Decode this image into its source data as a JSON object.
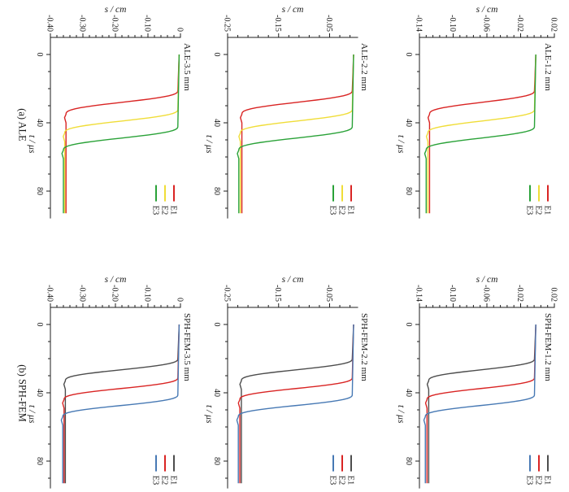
{
  "figure": {
    "background": "#ffffff",
    "row_a_label": "(a) ALE",
    "row_b_label": "(b) SPH-FEM",
    "text_color": "#1c1c1c"
  },
  "chart_data": {
    "type": "line",
    "orientation": "figure rotated 90 degrees clockwise; time axis runs downward, displacement axis runs across the top",
    "s_axis": {
      "label": "s / cm",
      "position": "top"
    },
    "t_axis": {
      "label": "t / μs",
      "position": "left",
      "ticks": [
        0,
        40,
        80
      ],
      "tick_labels": [
        "0",
        "40",
        "80"
      ],
      "minor_step": 10,
      "range": [
        -10,
        96
      ]
    },
    "legend": {
      "entries": [
        "E1",
        "E2",
        "E3"
      ],
      "position": "bottom-right of each subplot"
    },
    "curve_model": "each curve holds s near 0 until t_depart, falls smoothly to plateau_s at t_plateau with a slight overshoot, then stays constant until t = 93 μs",
    "subplots": [
      {
        "title": "ALE-3.5 mm",
        "row": 0,
        "col": 0,
        "s_range": [
          -0.4,
          0.0
        ],
        "s_initial": -0.004,
        "s_major_ticks": [
          -0.4,
          -0.3,
          -0.2,
          -0.1,
          0.0
        ],
        "s_tick_labels": [
          "-0.40",
          "-0.30",
          "-0.20",
          "-0.10",
          "0"
        ],
        "s_minor_step": 0.02,
        "series": [
          {
            "name": "E1",
            "color": "#d92423",
            "t_depart": 21,
            "t_plateau": 35,
            "plateau_s": -0.352
          },
          {
            "name": "E2",
            "color": "#f0dd38",
            "t_depart": 32,
            "t_plateau": 46,
            "plateau_s": -0.356
          },
          {
            "name": "E3",
            "color": "#2aa238",
            "t_depart": 42,
            "t_plateau": 56,
            "plateau_s": -0.36
          }
        ]
      },
      {
        "title": "ALE-2.2 mm",
        "row": 0,
        "col": 1,
        "s_range": [
          -0.25,
          0.005
        ],
        "s_initial": -0.003,
        "s_major_ticks": [
          -0.25,
          -0.15,
          -0.05
        ],
        "s_tick_labels": [
          "-0.25",
          "-0.15",
          "-0.05"
        ],
        "s_minor_step": 0.02,
        "series": [
          {
            "name": "E1",
            "color": "#d92423",
            "t_depart": 21,
            "t_plateau": 35,
            "plateau_s": -0.222
          },
          {
            "name": "E2",
            "color": "#f0dd38",
            "t_depart": 32,
            "t_plateau": 46,
            "plateau_s": -0.225
          },
          {
            "name": "E3",
            "color": "#2aa238",
            "t_depart": 42,
            "t_plateau": 56,
            "plateau_s": -0.228
          }
        ]
      },
      {
        "title": "ALE-1.2 mm",
        "row": 0,
        "col": 2,
        "s_range": [
          -0.14,
          0.02
        ],
        "s_initial": -0.002,
        "s_major_ticks": [
          -0.14,
          -0.1,
          -0.06,
          -0.02,
          0.02
        ],
        "s_tick_labels": [
          "-0.14",
          "-0.10",
          "-0.06",
          "-0.02",
          "0.02"
        ],
        "s_minor_step": 0.008,
        "series": [
          {
            "name": "E1",
            "color": "#d92423",
            "t_depart": 21,
            "t_plateau": 35,
            "plateau_s": -0.128
          },
          {
            "name": "E2",
            "color": "#f0dd38",
            "t_depart": 32,
            "t_plateau": 46,
            "plateau_s": -0.13
          },
          {
            "name": "E3",
            "color": "#2aa238",
            "t_depart": 42,
            "t_plateau": 56,
            "plateau_s": -0.132
          }
        ]
      },
      {
        "title": "SPH-FEM-3.5 mm",
        "row": 1,
        "col": 0,
        "s_range": [
          -0.4,
          0.0
        ],
        "s_initial": -0.004,
        "s_major_ticks": [
          -0.4,
          -0.3,
          -0.2,
          -0.1,
          0.0
        ],
        "s_tick_labels": [
          "-0.40",
          "-0.30",
          "-0.20",
          "-0.10",
          "0"
        ],
        "s_minor_step": 0.02,
        "series": [
          {
            "name": "E1",
            "color": "#4d4d4d",
            "t_depart": 20,
            "t_plateau": 33,
            "plateau_s": -0.354
          },
          {
            "name": "E2",
            "color": "#d92423",
            "t_depart": 31,
            "t_plateau": 44,
            "plateau_s": -0.358
          },
          {
            "name": "E3",
            "color": "#4779b4",
            "t_depart": 41,
            "t_plateau": 54,
            "plateau_s": -0.362
          }
        ]
      },
      {
        "title": "SPH-FEM-2.2 mm",
        "row": 1,
        "col": 1,
        "s_range": [
          -0.25,
          0.005
        ],
        "s_initial": -0.003,
        "s_major_ticks": [
          -0.25,
          -0.15,
          -0.05
        ],
        "s_tick_labels": [
          "-0.25",
          "-0.15",
          "-0.05"
        ],
        "s_minor_step": 0.02,
        "series": [
          {
            "name": "E1",
            "color": "#4d4d4d",
            "t_depart": 20,
            "t_plateau": 33,
            "plateau_s": -0.223
          },
          {
            "name": "E2",
            "color": "#d92423",
            "t_depart": 31,
            "t_plateau": 44,
            "plateau_s": -0.226
          },
          {
            "name": "E3",
            "color": "#4779b4",
            "t_depart": 41,
            "t_plateau": 54,
            "plateau_s": -0.229
          }
        ]
      },
      {
        "title": "SPH-FEM-1.2 mm",
        "row": 1,
        "col": 2,
        "s_range": [
          -0.14,
          0.02
        ],
        "s_initial": -0.002,
        "s_major_ticks": [
          -0.14,
          -0.1,
          -0.06,
          -0.02,
          0.02
        ],
        "s_tick_labels": [
          "-0.14",
          "-0.10",
          "-0.06",
          "-0.02",
          "0.02"
        ],
        "s_minor_step": 0.008,
        "series": [
          {
            "name": "E1",
            "color": "#4d4d4d",
            "t_depart": 20,
            "t_plateau": 33,
            "plateau_s": -0.129
          },
          {
            "name": "E2",
            "color": "#d92423",
            "t_depart": 31,
            "t_plateau": 44,
            "plateau_s": -0.131
          },
          {
            "name": "E3",
            "color": "#4779b4",
            "t_depart": 41,
            "t_plateau": 54,
            "plateau_s": -0.133
          }
        ]
      }
    ]
  }
}
